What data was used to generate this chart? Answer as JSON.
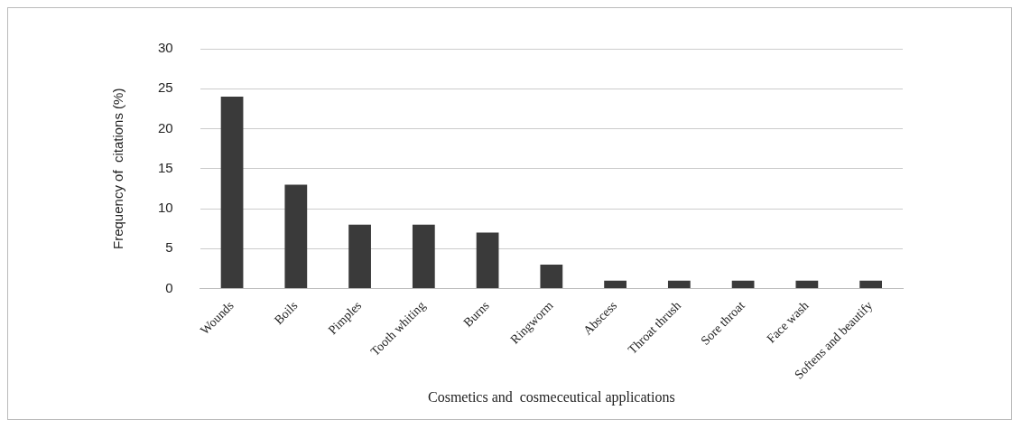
{
  "chart_data": {
    "type": "bar",
    "xlabel": "Cosmetics and  cosmeceutical applications",
    "ylabel": "Frequency of  citations (%)",
    "categories": [
      "Wounds",
      "Boils",
      "Pimples",
      "Tooth whiting",
      "Burns",
      "Ringworm",
      "Abscess",
      "Throat thrush",
      "Sore throat",
      "Face wash",
      "Softens and beautify"
    ],
    "values": [
      24,
      13,
      8,
      8,
      7,
      3,
      1,
      1,
      1,
      1,
      1
    ],
    "color": "#3a3a3a",
    "ylim": [
      0,
      30
    ],
    "yticks": [
      0,
      5,
      10,
      15,
      20,
      25,
      30
    ],
    "grid": "y",
    "legend": false
  }
}
